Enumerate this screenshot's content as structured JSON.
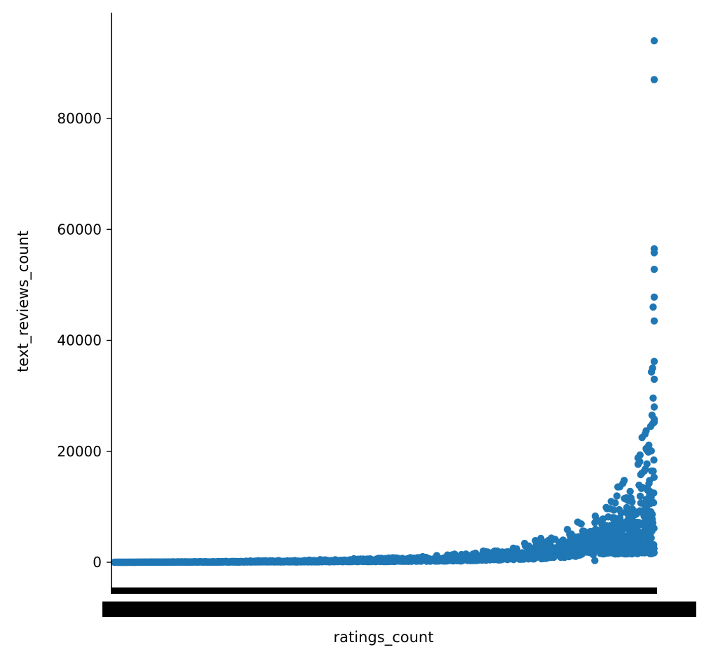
{
  "chart_data": {
    "type": "scatter",
    "title": "",
    "xlabel": "ratings_count",
    "ylabel": "text_reviews_count",
    "ylim": [
      -5000,
      98000
    ],
    "yticks": [
      0,
      20000,
      40000,
      60000,
      80000
    ],
    "x_axis": "categorical, thousands of overlapping ratings_count tick labels rendered as a solid black band",
    "grid": false,
    "color": "#1f77b4",
    "trend": [
      {
        "x_frac": 0.0,
        "y": 0
      },
      {
        "x_frac": 0.2,
        "y": 100
      },
      {
        "x_frac": 0.4,
        "y": 300
      },
      {
        "x_frac": 0.55,
        "y": 600
      },
      {
        "x_frac": 0.65,
        "y": 1000
      },
      {
        "x_frac": 0.75,
        "y": 1800
      },
      {
        "x_frac": 0.82,
        "y": 3000
      },
      {
        "x_frac": 0.88,
        "y": 5000
      },
      {
        "x_frac": 0.93,
        "y": 8000
      },
      {
        "x_frac": 0.97,
        "y": 12000
      },
      {
        "x_frac": 1.0,
        "y": 20000
      }
    ],
    "outliers": [
      {
        "x_frac": 1.0,
        "y": 94000
      },
      {
        "x_frac": 1.0,
        "y": 87000
      },
      {
        "x_frac": 1.0,
        "y": 56500
      },
      {
        "x_frac": 1.0,
        "y": 55800
      },
      {
        "x_frac": 1.0,
        "y": 52800
      },
      {
        "x_frac": 1.0,
        "y": 47800
      },
      {
        "x_frac": 0.998,
        "y": 46000
      },
      {
        "x_frac": 1.0,
        "y": 43500
      },
      {
        "x_frac": 1.0,
        "y": 36200
      },
      {
        "x_frac": 0.997,
        "y": 35000
      },
      {
        "x_frac": 0.995,
        "y": 34300
      },
      {
        "x_frac": 1.0,
        "y": 33000
      },
      {
        "x_frac": 0.998,
        "y": 29600
      },
      {
        "x_frac": 1.0,
        "y": 28000
      },
      {
        "x_frac": 0.996,
        "y": 26500
      },
      {
        "x_frac": 1.0,
        "y": 25800
      },
      {
        "x_frac": 0.985,
        "y": 23700
      },
      {
        "x_frac": 0.983,
        "y": 23100
      },
      {
        "x_frac": 0.99,
        "y": 21100
      },
      {
        "x_frac": 0.985,
        "y": 20500
      },
      {
        "x_frac": 0.97,
        "y": 18800
      },
      {
        "x_frac": 0.975,
        "y": 15800
      },
      {
        "x_frac": 0.945,
        "y": 11500
      },
      {
        "x_frac": 0.925,
        "y": 9400
      },
      {
        "x_frac": 0.905,
        "y": 7800
      },
      {
        "x_frac": 0.9,
        "y": 7500
      },
      {
        "x_frac": 0.87,
        "y": 5600
      },
      {
        "x_frac": 0.79,
        "y": 4300
      },
      {
        "x_frac": 0.78,
        "y": 3900
      },
      {
        "x_frac": 0.76,
        "y": 3400
      },
      {
        "x_frac": 0.86,
        "y": 4600
      },
      {
        "x_frac": 0.95,
        "y": 2100
      },
      {
        "x_frac": 0.935,
        "y": 3600
      },
      {
        "x_frac": 0.89,
        "y": 300
      }
    ]
  }
}
